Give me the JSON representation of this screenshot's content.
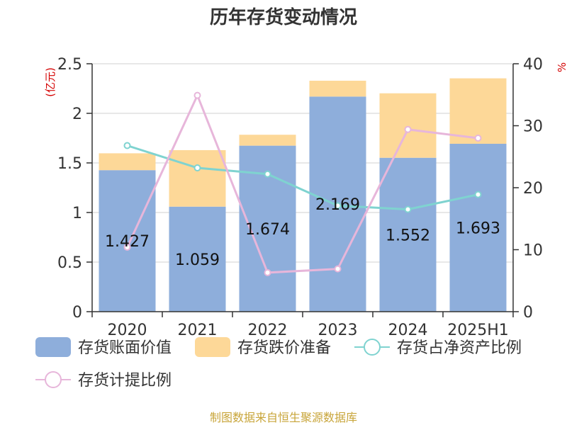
{
  "chart_data": {
    "type": "bar",
    "title": "历年存货变动情况",
    "categories": [
      "2020",
      "2021",
      "2022",
      "2023",
      "2024",
      "2025H1"
    ],
    "left_axis": {
      "unit_label": "(亿元)",
      "ylim": [
        0,
        2.5
      ],
      "ticks": [
        "0",
        "0.5",
        "1",
        "1.5",
        "2",
        "2.5"
      ]
    },
    "right_axis": {
      "unit_label": "%",
      "ylim": [
        0,
        40
      ],
      "ticks": [
        "0",
        "10",
        "20",
        "30",
        "40"
      ]
    },
    "bar_series": [
      {
        "name": "存货账面价值",
        "color": "#8eaedb",
        "values": [
          1.427,
          1.059,
          1.674,
          2.169,
          1.552,
          1.693
        ],
        "labels": [
          "1.427",
          "1.059",
          "1.674",
          "2.169",
          "1.552",
          "1.693"
        ]
      },
      {
        "name": "存货跌价准备",
        "color": "#fdd898",
        "values": [
          0.17,
          0.57,
          0.11,
          0.16,
          0.65,
          0.66
        ]
      }
    ],
    "line_series": [
      {
        "name": "存货占净资产比例",
        "color": "#7fd3d0",
        "values": [
          26.8,
          23.2,
          22.2,
          17.1,
          16.5,
          18.9
        ]
      },
      {
        "name": "存货计提比例",
        "color": "#e7b6da",
        "values": [
          10.4,
          34.9,
          6.3,
          6.9,
          29.4,
          28.0
        ]
      }
    ],
    "grid": true,
    "legend_position": "bottom"
  },
  "source_note": "制图数据来自恒生聚源数据库"
}
